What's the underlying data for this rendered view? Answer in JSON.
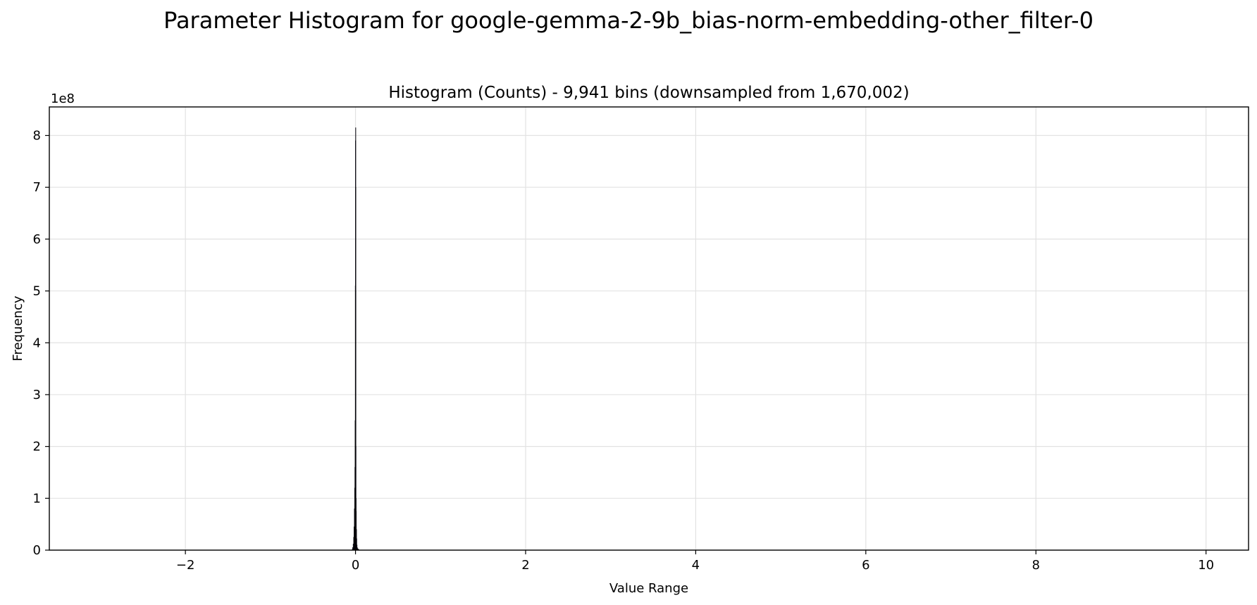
{
  "chart_data": {
    "type": "bar",
    "suptitle": "Parameter Histogram for google-gemma-2-9b_bias-norm-embedding-other_filter-0",
    "title": "Histogram (Counts) - 9,941 bins (downsampled from 1,670,002)",
    "xlabel": "Value Range",
    "ylabel": "Frequency",
    "y_offset_label": "1e8",
    "y_multiplier": 100000000,
    "xlim": [
      -3.6,
      10.5
    ],
    "ylim": [
      0,
      8.55
    ],
    "x_ticks": [
      -2,
      0,
      2,
      4,
      6,
      8,
      10
    ],
    "x_tick_labels": [
      "−2",
      "0",
      "2",
      "4",
      "6",
      "8",
      "10"
    ],
    "y_ticks": [
      0,
      1,
      2,
      3,
      4,
      5,
      6,
      7,
      8
    ],
    "y_tick_labels": [
      "0",
      "1",
      "2",
      "3",
      "4",
      "5",
      "6",
      "7",
      "8"
    ],
    "grid": true,
    "bar_color": "#1f1a3a",
    "bar_edge_color": "#000000",
    "series": [
      {
        "x": [
          -0.04,
          -0.032,
          -0.026,
          -0.021,
          -0.017,
          -0.013,
          -0.01,
          -0.007,
          -0.005,
          -0.003,
          -0.001,
          0.0,
          0.001,
          0.002,
          0.003,
          0.005,
          0.007,
          0.01,
          0.013,
          0.017,
          0.021,
          0.026,
          0.032,
          0.04
        ],
        "values": [
          0.01,
          0.05,
          0.12,
          0.25,
          0.45,
          0.8,
          1.2,
          1.6,
          2.5,
          5.1,
          7.9,
          8.15,
          7.0,
          5.0,
          2.0,
          1.0,
          0.75,
          0.4,
          0.22,
          0.1,
          0.05,
          0.03,
          0.02,
          0.01
        ]
      }
    ]
  }
}
